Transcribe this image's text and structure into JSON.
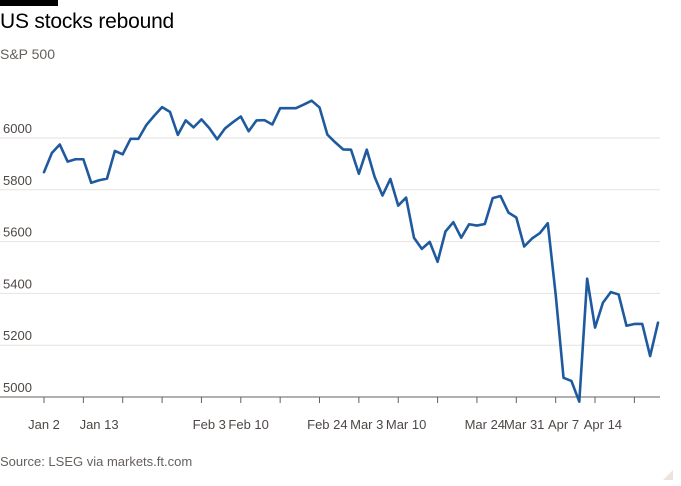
{
  "chart_data": {
    "type": "line",
    "title": "US stocks rebound",
    "subtitle": "S&P 500",
    "source": "Source: LSEG via markets.ft.com",
    "xlabel": "",
    "ylabel": "",
    "ylim": [
      4950,
      6200
    ],
    "yticks": [
      5000,
      5200,
      5400,
      5600,
      5800,
      6000
    ],
    "grid": true,
    "line_color": "#1f5a9e",
    "x_tick_labels": [
      "Jan 2",
      "Jan 13",
      "Feb 3",
      "Feb 10",
      "Feb 24",
      "Mar 3",
      "Mar 10",
      "Mar 24",
      "Mar 31",
      "Apr 7",
      "Apr 14"
    ],
    "x_tick_index": [
      0,
      7,
      21,
      26,
      36,
      41,
      46,
      56,
      61,
      66,
      71
    ],
    "series": [
      {
        "values": [
          5868,
          5942,
          5975,
          5909,
          5918,
          5918,
          5827,
          5837,
          5843,
          5950,
          5937,
          5997,
          5997,
          6050,
          6086,
          6119,
          6101,
          6012,
          6068,
          6041,
          6072,
          6038,
          5995,
          6037,
          6061,
          6083,
          6026,
          6068,
          6069,
          6052,
          6115,
          6115,
          6115,
          6129,
          6144,
          6118,
          6013,
          5983,
          5956,
          5955,
          5862,
          5955,
          5850,
          5778,
          5842,
          5739,
          5770,
          5615,
          5572,
          5599,
          5522,
          5639,
          5675,
          5615,
          5667,
          5662,
          5668,
          5768,
          5776,
          5712,
          5693,
          5581,
          5612,
          5633,
          5671,
          5396,
          5074,
          5062,
          4982,
          5457,
          5268,
          5364,
          5405,
          5396,
          5275,
          5282,
          5282,
          5158,
          5287
        ]
      }
    ]
  }
}
